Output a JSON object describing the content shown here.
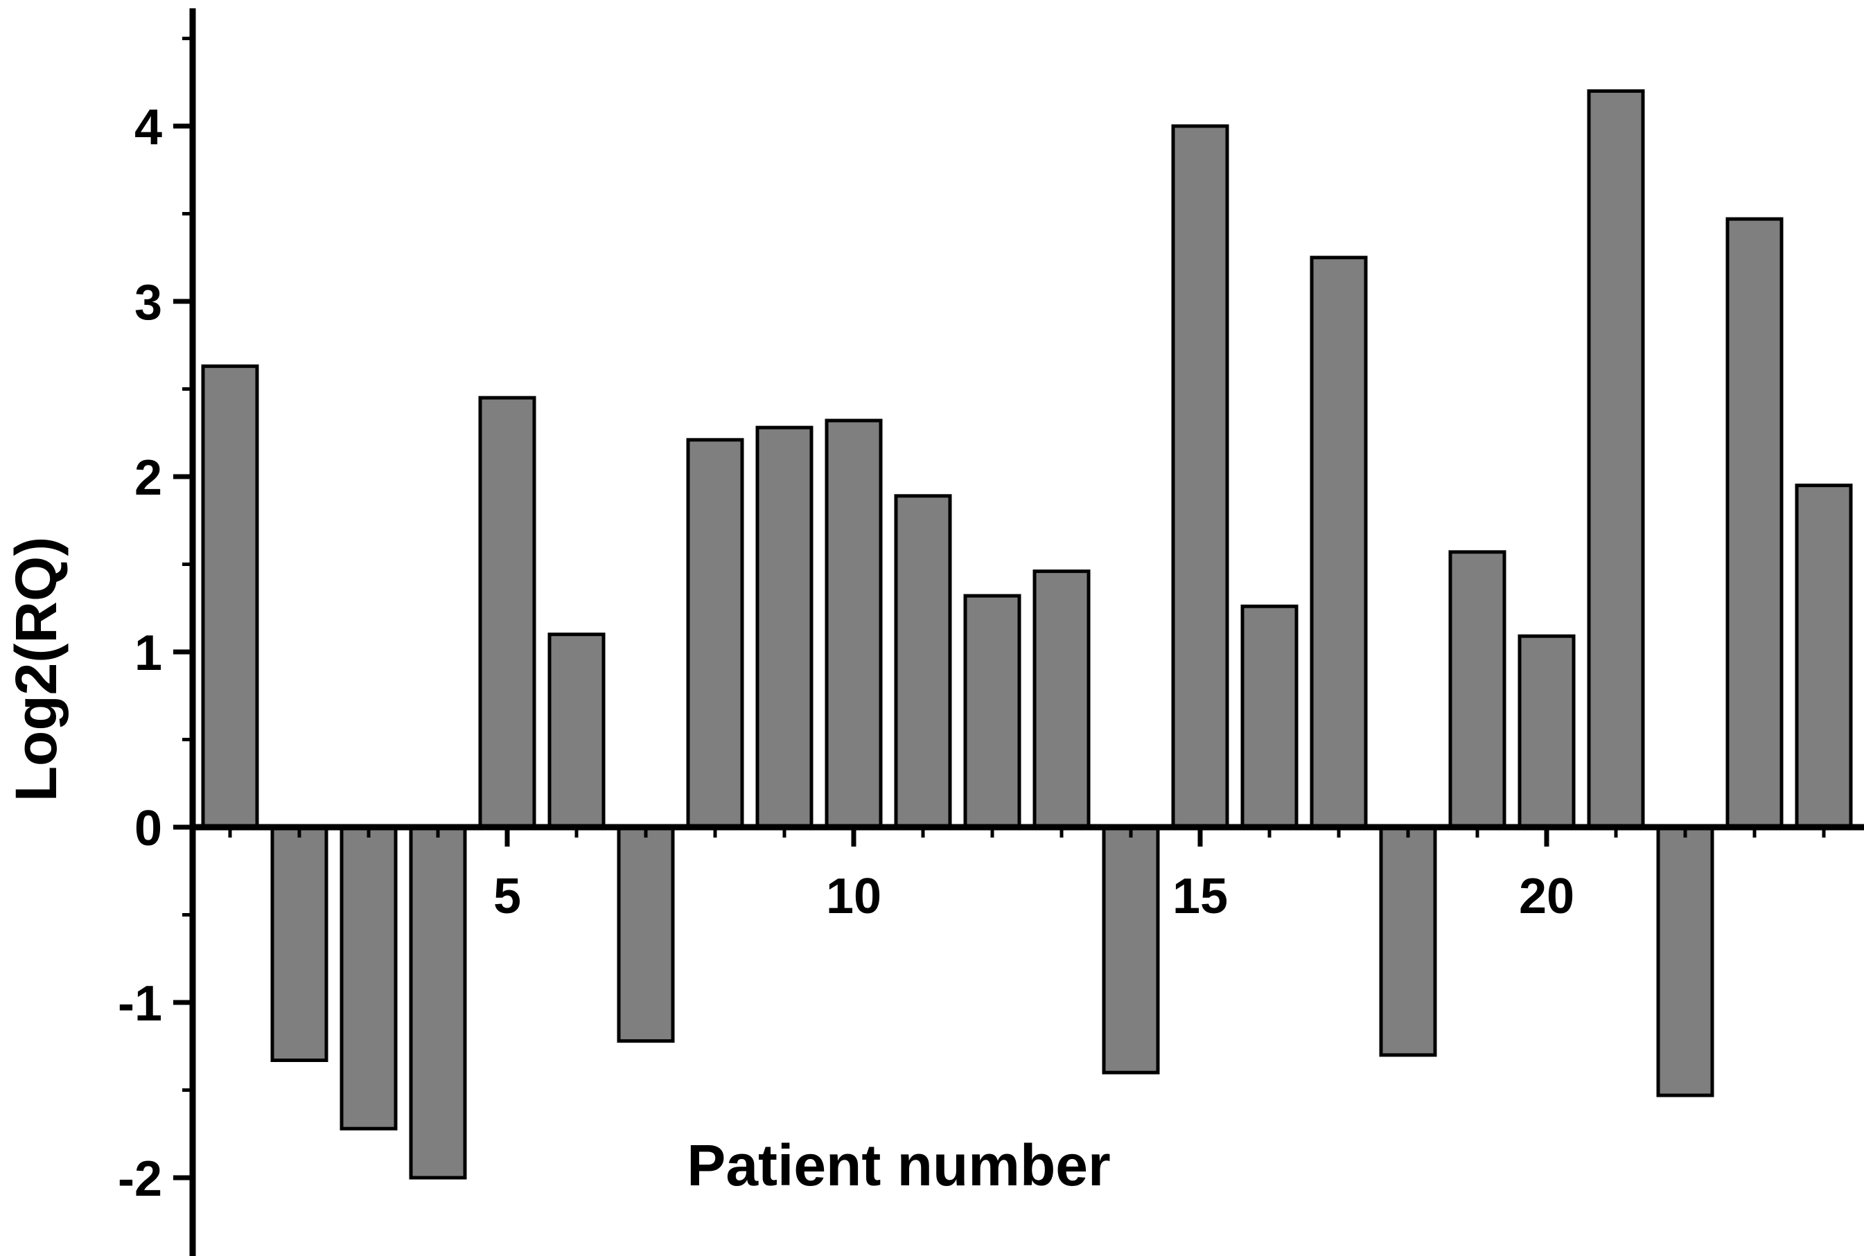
{
  "chart_data": {
    "type": "bar",
    "title": "",
    "xlabel": "Patient number",
    "ylabel": "Log2(RQ)",
    "x": [
      1,
      2,
      3,
      4,
      5,
      6,
      7,
      8,
      9,
      10,
      11,
      12,
      13,
      14,
      15,
      16,
      17,
      18,
      19,
      20,
      21,
      22,
      23,
      24
    ],
    "values": [
      2.63,
      -1.33,
      -1.72,
      -2.0,
      2.45,
      1.1,
      -1.22,
      2.21,
      2.28,
      2.32,
      1.89,
      1.32,
      1.46,
      -1.4,
      4.0,
      1.26,
      3.25,
      -1.3,
      1.57,
      1.09,
      4.2,
      -1.53,
      3.47,
      1.95
    ],
    "ylim": [
      -2.45,
      4.72
    ],
    "yticks": [
      -2,
      -1,
      0,
      1,
      2,
      3,
      4
    ],
    "xticks": [
      5,
      10,
      15,
      20
    ],
    "grid": "off",
    "legend": "none",
    "bar_color": "#7f7f7f",
    "bar_edge_color": "#000000",
    "axis_color": "#000000",
    "text_color": "#000000",
    "background": "#ffffff"
  }
}
